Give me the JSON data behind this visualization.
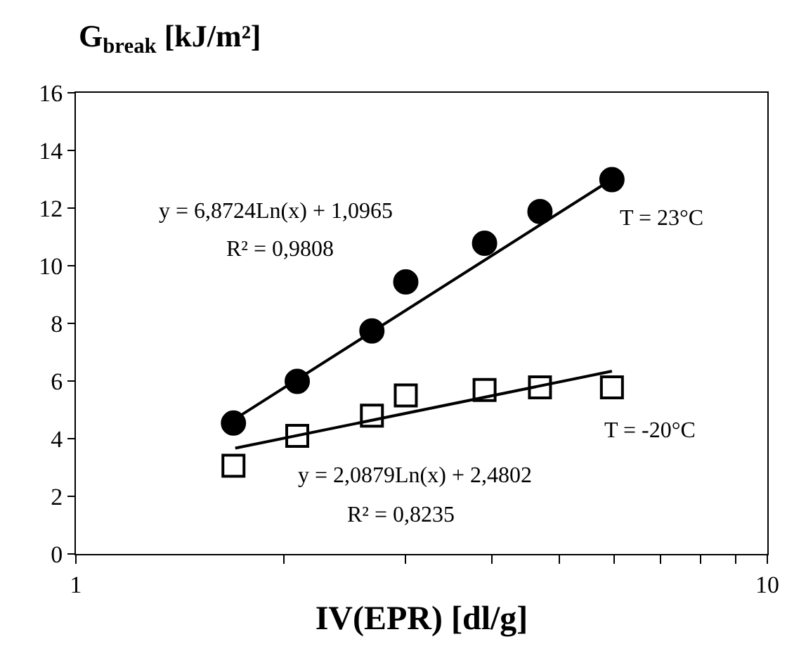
{
  "chart_data": {
    "type": "scatter",
    "ylabel": "G$_{break}$ [kJ/m²]",
    "xlabel": "IV(EPR) [dl/g]",
    "log": "x",
    "xlim": [
      1,
      10
    ],
    "xticks": [
      1,
      {
        "value": 2,
        "label": null
      },
      {
        "value": 3,
        "label": null
      },
      {
        "value": 4,
        "label": null
      },
      {
        "value": 5,
        "label": null
      },
      {
        "value": 6,
        "label": null
      },
      {
        "value": 7,
        "label": null
      },
      {
        "value": 8,
        "label": null
      },
      {
        "value": 9,
        "label": null
      },
      10
    ],
    "ylim": [
      0,
      16
    ],
    "yticks": [
      0,
      2,
      4,
      6,
      8,
      10,
      12,
      14,
      16
    ],
    "grid": false,
    "x": [
      1.69,
      2.09,
      2.68,
      3.0,
      3.9,
      4.69,
      5.96
    ],
    "series": [
      {
        "type": "scatter",
        "marker": "circle",
        "color": "#000000",
        "values": [
          4.54,
          5.99,
          7.74,
          9.44,
          10.78,
          11.88,
          12.99
        ]
      },
      {
        "type": "scatter",
        "marker": "square",
        "color": "#000000",
        "values": [
          3.06,
          4.1,
          4.8,
          5.5,
          5.69,
          5.78,
          5.78
        ]
      },
      {
        "type": "line",
        "marker": "none",
        "color": "#000000",
        "x": [
          1.69,
          5.96
        ],
        "values": [
          4.65,
          13.0
        ]
      },
      {
        "type": "line",
        "marker": "none",
        "color": "#000000",
        "x": [
          1.7,
          5.96
        ],
        "values": [
          3.67,
          6.34
        ]
      }
    ],
    "annotations": [
      "y = 6,8724Ln(x) + 1,0965",
      "R² = 0,9808",
      "T = 23°C",
      "y = 2,0879Ln(x) + 2,4802",
      "R² = 0,8235",
      "T = -20°C"
    ]
  }
}
